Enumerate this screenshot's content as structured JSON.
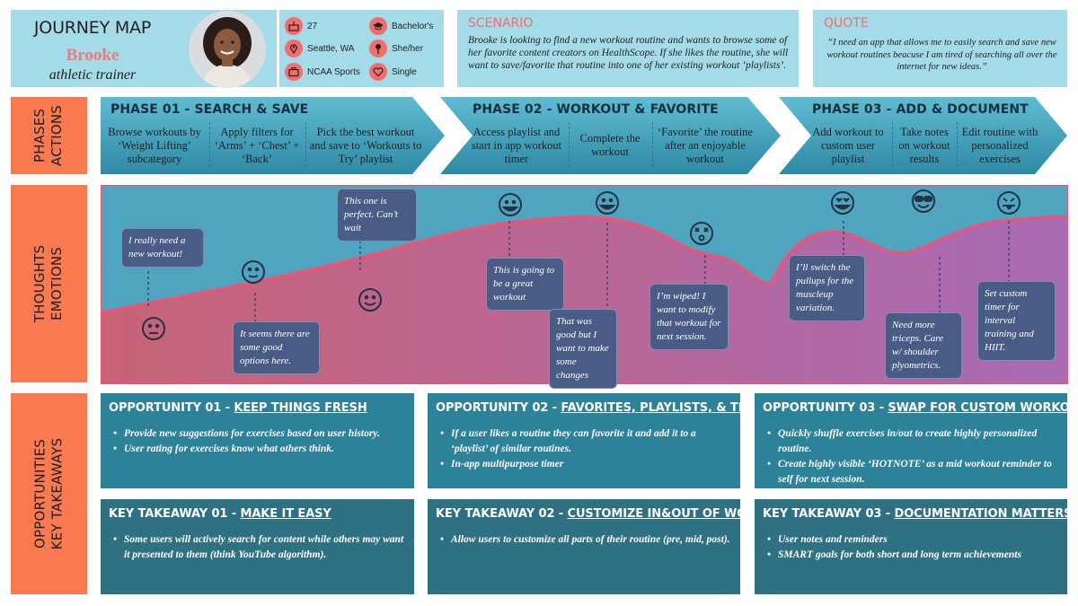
{
  "persona": {
    "title": "JOURNEY MAP",
    "name": "Brooke",
    "role": "athletic trainer",
    "facts": [
      {
        "icon": "cake-icon",
        "label": "27"
      },
      {
        "icon": "graduation-cap-icon",
        "label": "Bachelor's"
      },
      {
        "icon": "location-pin-icon",
        "label": "Seattle, WA"
      },
      {
        "icon": "pronoun-icon",
        "label": "She/her"
      },
      {
        "icon": "briefcase-icon",
        "label": "NCAA Sports"
      },
      {
        "icon": "heart-icon",
        "label": "Single"
      }
    ]
  },
  "scenario": {
    "label": "SCENARIO",
    "text": "Brooke is looking to find a new workout routine and wants to browse some of her favorite content creators on HealthScope. If she likes the routine, she will want to save/favorite that routine into one of her existing workout ‘playlists’."
  },
  "quote": {
    "label": "QUOTE",
    "text": "“I need an app that allows me to easily search and save new workout routines beacuse I am tired of searching all over the internet for new ideas.”"
  },
  "side_labels": {
    "phases": [
      "PHASES",
      "ACTIONS"
    ],
    "thoughts": [
      "THOUGHTS",
      "EMOTIONS"
    ],
    "opportunities": [
      "OPPORTUNITIES",
      "KEY TAKEAWAYS"
    ]
  },
  "phases": [
    {
      "title": "PHASE 01 - SEARCH & SAVE",
      "actions": [
        "Browse workouts by ‘Weight Lifting’ subcategory",
        "Apply filters for ‘Arms’ + ‘Chest’ + ‘Back’",
        "Pick the best workout and save to ‘Workouts to Try’ playlist"
      ]
    },
    {
      "title": "PHASE 02 - WORKOUT & FAVORITE",
      "actions": [
        "Access playlist and start in app workout timer",
        "Complete the workout",
        "‘Favorite’ the routine after an enjoyable workout"
      ]
    },
    {
      "title": "PHASE 03 - ADD & DOCUMENT",
      "actions": [
        "Add workout to custom user playlist",
        "Take notes on workout results",
        "Edit routine with personalized exercises"
      ]
    }
  ],
  "thoughts": [
    {
      "text": "I really need a new workout!",
      "emotion": "neutral-face-icon"
    },
    {
      "text": "It seems there are some good options here.",
      "emotion": "slight-smile-icon"
    },
    {
      "text": "This one is perfect. Can’t wait",
      "emotion": "smile-icon"
    },
    {
      "text": "This is going to be a great workout",
      "emotion": "big-smile-icon"
    },
    {
      "text": "That was good but I want to make some changes",
      "emotion": "grin-icon"
    },
    {
      "text": "I’m wiped! I want to modify that workout for next session.",
      "emotion": "exhausted-face-icon"
    },
    {
      "text": "I’ll switch the pullups for the muscleup variation.",
      "emotion": "heart-eyes-icon"
    },
    {
      "text": "Need more triceps. Care w/ shoulder plyometrics.",
      "emotion": "sunglasses-face-icon"
    },
    {
      "text": "Set custom timer for interval training and HIIT.",
      "emotion": "tongue-out-icon"
    }
  ],
  "opportunities": [
    {
      "prefix": "OPPORTUNITY 01 - ",
      "title": "KEEP THINGS FRESH",
      "items": [
        "Provide new suggestions for exercises based on user history.",
        "User rating for exercises know what others think."
      ]
    },
    {
      "prefix": "OPPORTUNITY 02 - ",
      "title": "FAVORITES, PLAYLISTS, & TIMERS",
      "items": [
        "If a user likes a routine they can favorite it and add it to a ‘playlist’ of similar routines.",
        "In-app multipurpose timer"
      ]
    },
    {
      "prefix": "OPPORTUNITY 03 - ",
      "title": "SWAP FOR CUSTOM WORKOUT",
      "items": [
        "Quickly shuffle exercises in/out to create highly personalized routine.",
        "Create highly visible ‘HOTNOTE’ as a mid workout reminder to self for next session."
      ]
    }
  ],
  "takeaways": [
    {
      "prefix": "KEY TAKEAWAY 01 - ",
      "title": "MAKE IT EASY",
      "items": [
        "Some users will actively search for content while others may want it presented to them (think YouTube algorithm)."
      ]
    },
    {
      "prefix": "KEY TAKEAWAY 02 - ",
      "title": "CUSTOMIZE IN&OUT OF WORKOUT",
      "items": [
        "Allow users to customize all parts of their routine (pre, mid, post)."
      ]
    },
    {
      "prefix": "KEY TAKEAWAY 03 - ",
      "title": "DOCUMENTATION MATTERS",
      "items": [
        "User notes and reminders",
        "SMART goals for both short and long term achievements"
      ]
    }
  ],
  "colors": {
    "accent": "#f36d6d",
    "side": "#f97a50",
    "light": "#a3dbe8",
    "card": "#2c8298",
    "card_dark": "#2e7183",
    "bubble": "#485c85"
  }
}
